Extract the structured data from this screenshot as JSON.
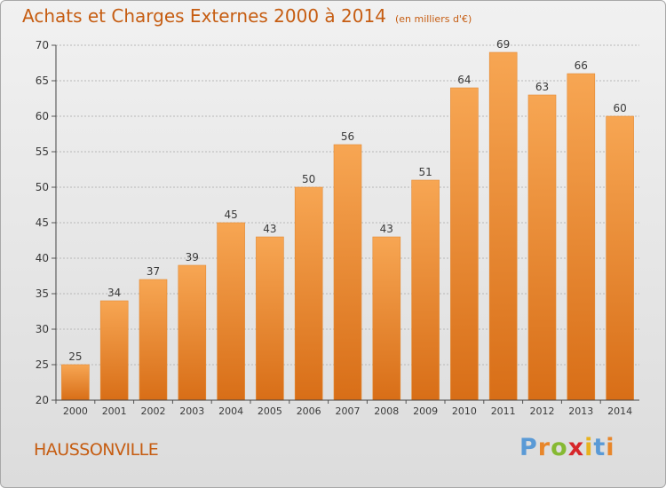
{
  "header": {
    "title": "Achats et Charges Externes 2000 à 2014",
    "unit": "(en milliers d'€)"
  },
  "footer": {
    "location": "HAUSSONVILLE",
    "logo": {
      "letters": [
        "P",
        "r",
        "o",
        "x",
        "i",
        "t",
        "i"
      ],
      "colors": [
        "#5a9ad6",
        "#e8862a",
        "#86b932",
        "#d6262a",
        "#e8b21e",
        "#5a9ad6",
        "#e8862a"
      ]
    }
  },
  "colors": {
    "bar_light": "#f7a653",
    "bar_dark": "#d86e17",
    "text": "#c65d12",
    "axis_text": "#3a3a3a",
    "grid": "#b8b8b8"
  },
  "chart_data": {
    "type": "bar",
    "title": "Achats et Charges Externes 2000 à 2014",
    "subtitle": "(en milliers d'€)",
    "categories": [
      "2000",
      "2001",
      "2002",
      "2003",
      "2004",
      "2005",
      "2006",
      "2007",
      "2008",
      "2009",
      "2010",
      "2011",
      "2012",
      "2013",
      "2014"
    ],
    "values": [
      25,
      34,
      37,
      39,
      45,
      43,
      50,
      56,
      43,
      51,
      64,
      69,
      63,
      66,
      60
    ],
    "ylim": [
      20,
      70
    ],
    "yticks": [
      20,
      25,
      30,
      35,
      40,
      45,
      50,
      55,
      60,
      65,
      70
    ],
    "grid": true,
    "xlabel": "",
    "ylabel": ""
  }
}
